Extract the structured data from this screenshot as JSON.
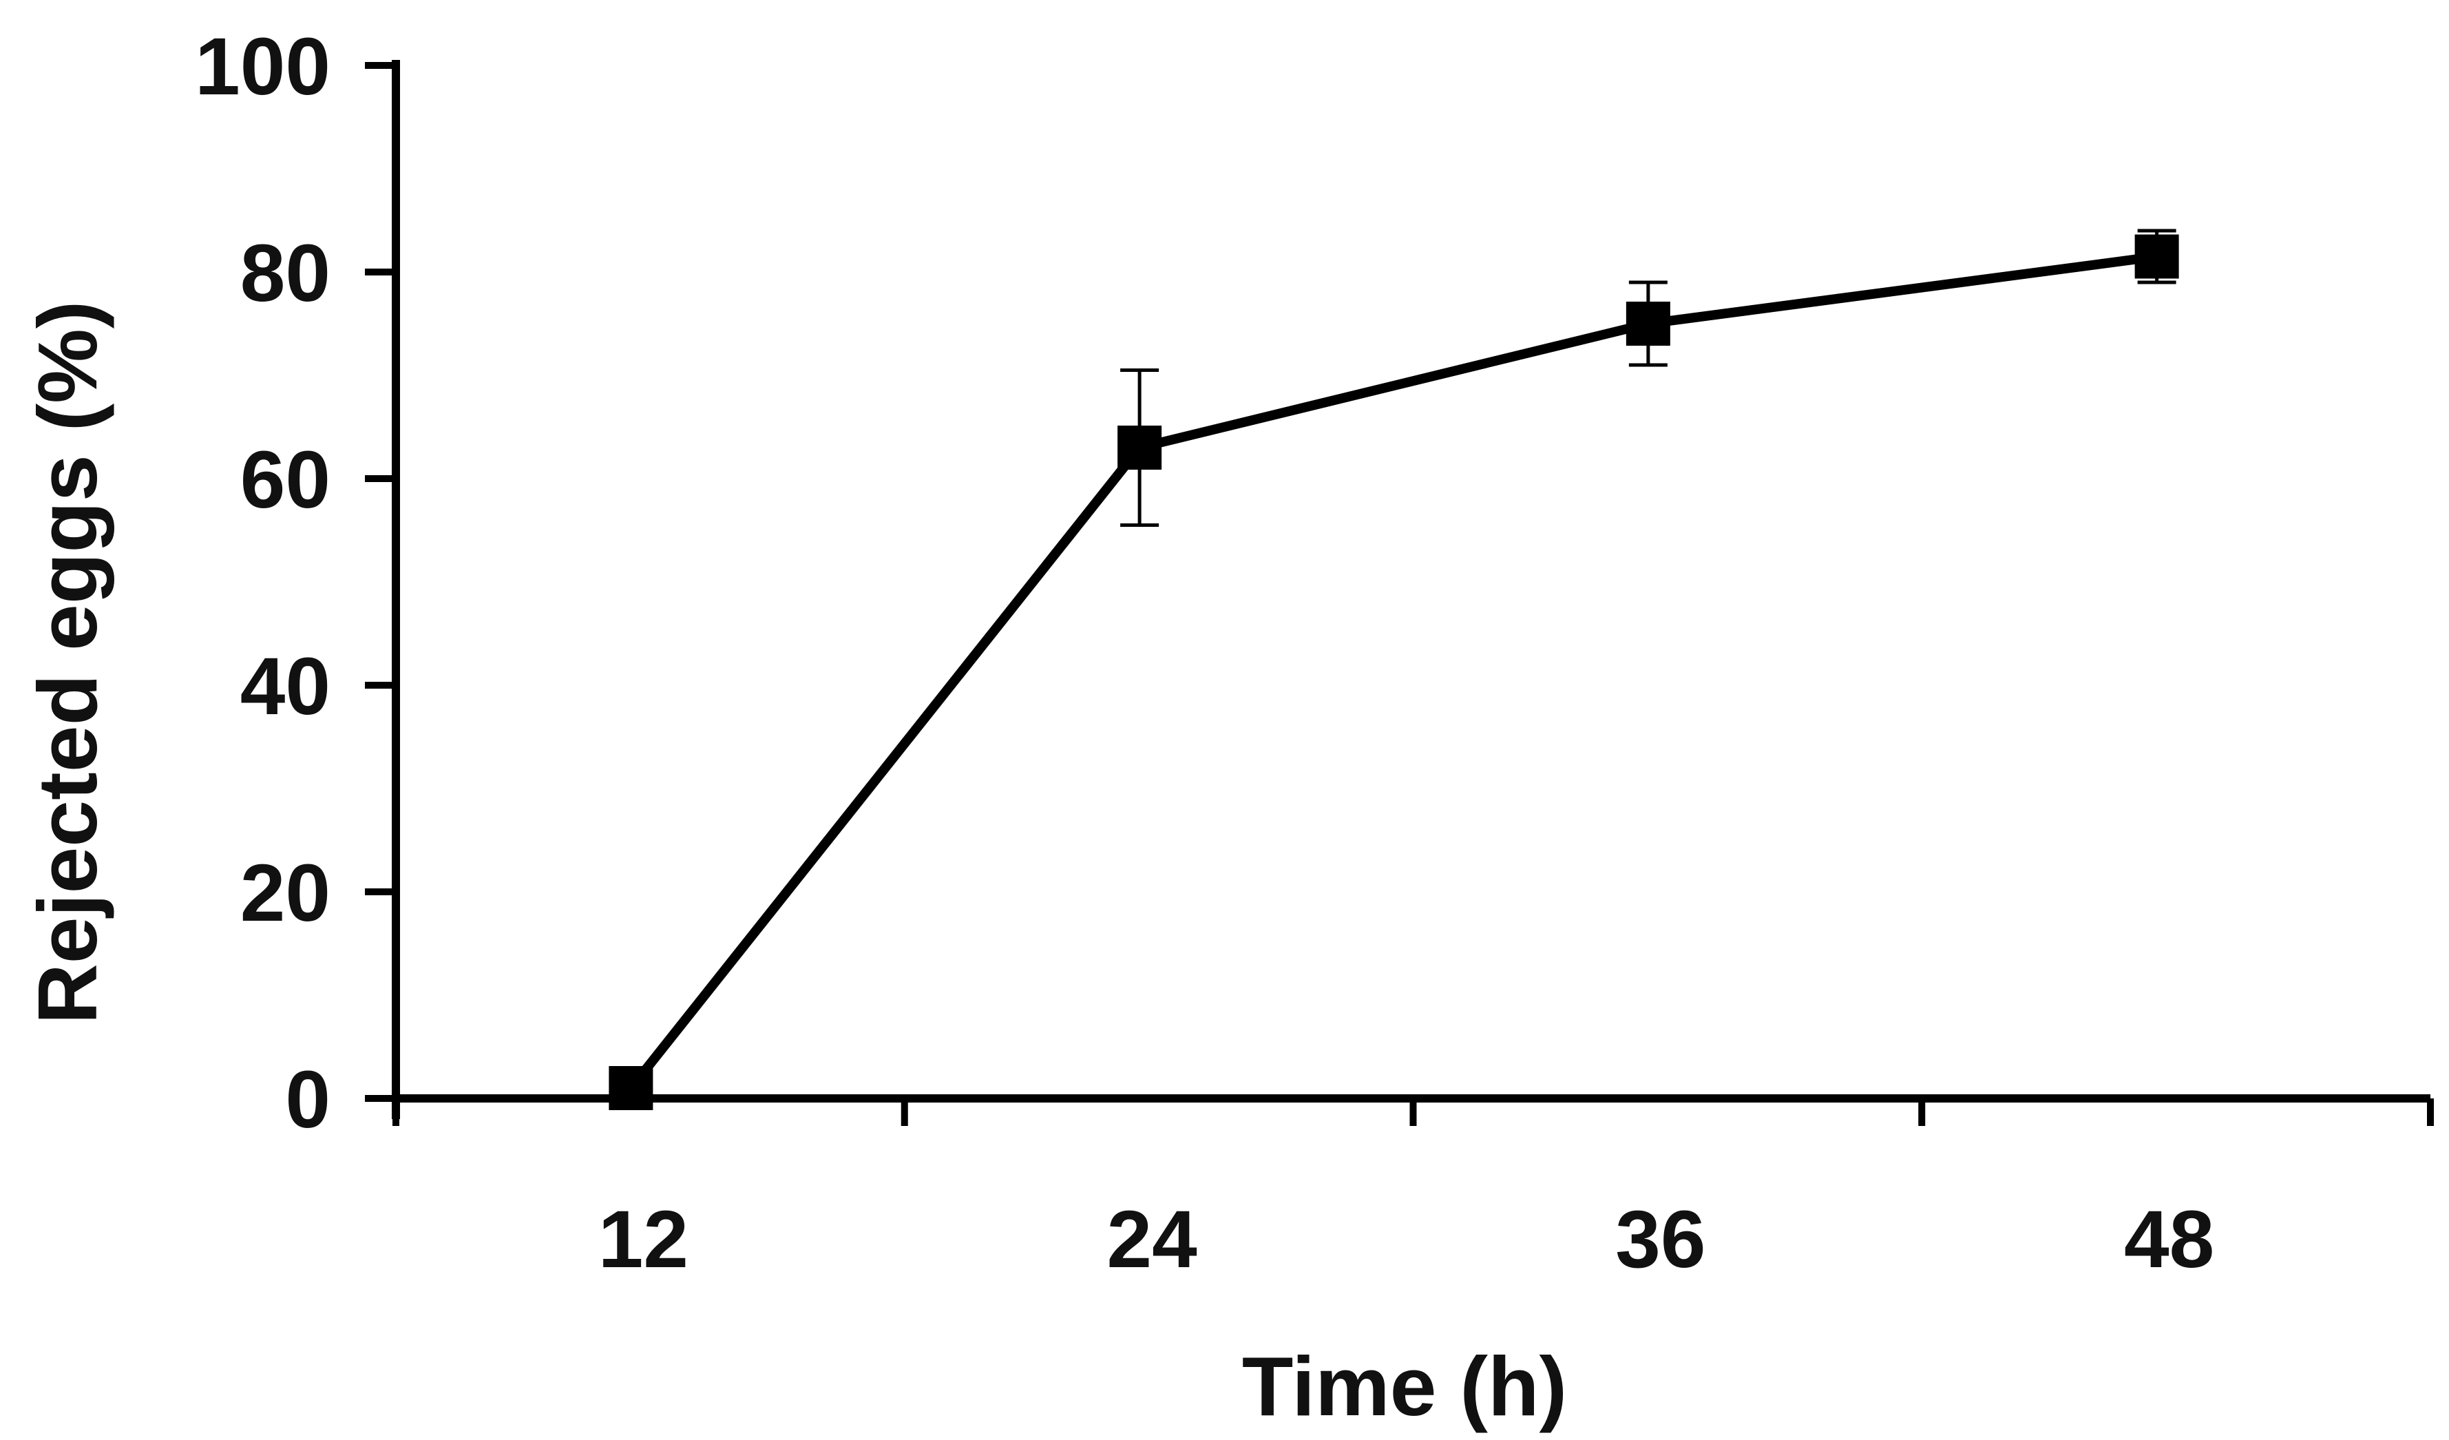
{
  "chart_data": {
    "type": "line",
    "title": "",
    "xlabel": "Time (h)",
    "ylabel": "Rejected eggs (%)",
    "x_categories": [
      "12",
      "24",
      "36",
      "48"
    ],
    "yticks": [
      "0",
      "20",
      "40",
      "60",
      "80",
      "100"
    ],
    "ylim": [
      0,
      100
    ],
    "grid": false,
    "legend": "none",
    "series": [
      {
        "marker": "square",
        "color": "#000000",
        "x": [
          "12",
          "24",
          "36",
          "48"
        ],
        "values": [
          1,
          63,
          75,
          81.5
        ],
        "error": [
          0,
          7.5,
          4,
          2.5
        ]
      }
    ]
  }
}
